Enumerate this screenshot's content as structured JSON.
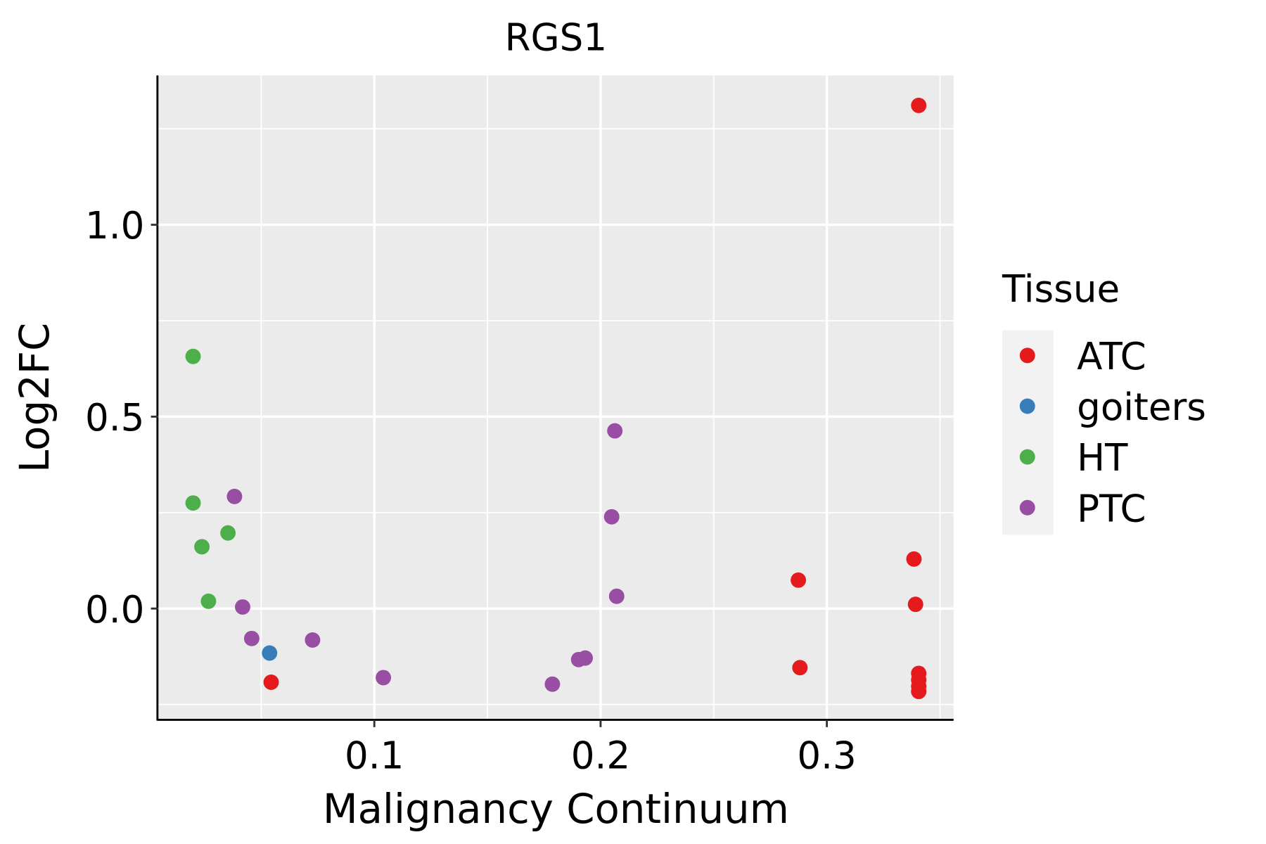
{
  "chart_data": {
    "type": "scatter",
    "title": "RGS1",
    "xlabel": "Malignancy Continuum",
    "ylabel": "Log2FC",
    "xlim": [
      0.0045,
      0.356
    ],
    "ylim": [
      -0.29,
      1.389
    ],
    "x_ticks": [
      0.1,
      0.2,
      0.3
    ],
    "x_tick_labels": [
      "0.1",
      "0.2",
      "0.3"
    ],
    "y_ticks": [
      0.0,
      0.5,
      1.0
    ],
    "y_tick_labels": [
      "0.0",
      "0.5",
      "1.0"
    ],
    "grid": true,
    "legend": {
      "title": "Tissue",
      "placement": "right",
      "entries": [
        {
          "name": "ATC",
          "color": "#E41A1C"
        },
        {
          "name": "goiters",
          "color": "#377EB8"
        },
        {
          "name": "HT",
          "color": "#4DAF4A"
        },
        {
          "name": "PTC",
          "color": "#984EA3"
        }
      ]
    },
    "series": [
      {
        "name": "ATC",
        "color": "#E41A1C",
        "points": [
          [
            0.3406,
            1.311
          ],
          [
            0.3385,
            0.129
          ],
          [
            0.2874,
            0.074
          ],
          [
            0.3392,
            0.011
          ],
          [
            0.2881,
            -0.154
          ],
          [
            0.3406,
            -0.169
          ],
          [
            0.3406,
            -0.186
          ],
          [
            0.3406,
            -0.203
          ],
          [
            0.3406,
            -0.216
          ],
          [
            0.0544,
            -0.192
          ]
        ]
      },
      {
        "name": "goiters",
        "color": "#377EB8",
        "points": [
          [
            0.0537,
            -0.116
          ]
        ]
      },
      {
        "name": "HT",
        "color": "#4DAF4A",
        "points": [
          [
            0.0199,
            0.657
          ],
          [
            0.0199,
            0.275
          ],
          [
            0.0238,
            0.161
          ],
          [
            0.0353,
            0.197
          ],
          [
            0.0267,
            0.019
          ]
        ]
      },
      {
        "name": "PTC",
        "color": "#984EA3",
        "points": [
          [
            0.0382,
            0.292
          ],
          [
            0.0418,
            0.004
          ],
          [
            0.0458,
            -0.078
          ],
          [
            0.0727,
            -0.082
          ],
          [
            0.104,
            -0.18
          ],
          [
            0.1787,
            -0.197
          ],
          [
            0.1903,
            -0.133
          ],
          [
            0.1932,
            -0.129
          ],
          [
            0.2063,
            0.463
          ],
          [
            0.2049,
            0.239
          ],
          [
            0.2071,
            0.032
          ]
        ]
      }
    ]
  }
}
